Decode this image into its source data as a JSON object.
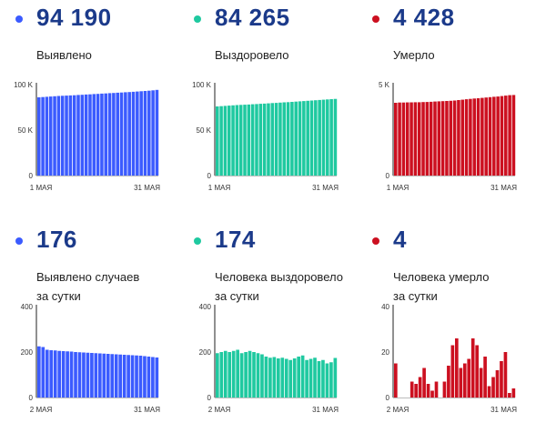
{
  "colors": {
    "blue": "#3b5bff",
    "green": "#1fc9a0",
    "red": "#cc1020",
    "headline": "#1b3a8a"
  },
  "panels": [
    {
      "big": "94 190",
      "label1": "Выявлено",
      "label2": ""
    },
    {
      "big": "84 265",
      "label1": "Выздоровело",
      "label2": ""
    },
    {
      "big": "4 428",
      "label1": "Умерло",
      "label2": ""
    },
    {
      "big": "176",
      "label1": "Выявлено случаев",
      "label2": "за сутки"
    },
    {
      "big": "174",
      "label1": "Человека выздоровело",
      "label2": "за сутки"
    },
    {
      "big": "4",
      "label1": "Человека умерло",
      "label2": "за сутки"
    }
  ],
  "chart_data": [
    {
      "type": "bar",
      "title": "Выявлено",
      "color": "blue",
      "ymax": 100000,
      "yticks": [
        {
          "v": 100000,
          "t": "100 K"
        },
        {
          "v": 50000,
          "t": "50 K"
        },
        {
          "v": 0,
          "t": "0"
        }
      ],
      "xfirst": "1 МАЯ",
      "xlast": "31 МАЯ",
      "values": [
        86000,
        86300,
        86600,
        86900,
        87200,
        87500,
        87700,
        87900,
        88100,
        88300,
        88600,
        88800,
        89100,
        89300,
        89600,
        89800,
        90100,
        90300,
        90600,
        90800,
        91100,
        91300,
        91600,
        91800,
        92100,
        92400,
        92700,
        93000,
        93300,
        93700,
        94190
      ]
    },
    {
      "type": "bar",
      "title": "Выздоровело",
      "color": "green",
      "ymax": 100000,
      "yticks": [
        {
          "v": 100000,
          "t": "100 K"
        },
        {
          "v": 50000,
          "t": "50 K"
        },
        {
          "v": 0,
          "t": "0"
        }
      ],
      "xfirst": "1 МАЯ",
      "xlast": "31 МАЯ",
      "values": [
        76000,
        76300,
        76600,
        76900,
        77200,
        77500,
        77700,
        77900,
        78100,
        78400,
        78600,
        78900,
        79100,
        79400,
        79700,
        79900,
        80200,
        80500,
        80700,
        81000,
        81300,
        81600,
        81900,
        82200,
        82500,
        82800,
        83100,
        83400,
        83700,
        84000,
        84265
      ]
    },
    {
      "type": "bar",
      "title": "Умерло",
      "color": "red",
      "ymax": 5000,
      "yticks": [
        {
          "v": 5000,
          "t": "5 K"
        },
        {
          "v": 0,
          "t": "0"
        }
      ],
      "xfirst": "1 МАЯ",
      "xlast": "31 МАЯ",
      "values": [
        4000,
        4015,
        4015,
        4022,
        4024,
        4030,
        4030,
        4040,
        4045,
        4055,
        4070,
        4080,
        4090,
        4100,
        4110,
        4125,
        4150,
        4170,
        4195,
        4215,
        4235,
        4250,
        4270,
        4290,
        4310,
        4330,
        4345,
        4370,
        4395,
        4420,
        4428
      ]
    },
    {
      "type": "bar",
      "title": "Выявлено случаев за сутки",
      "color": "blue",
      "ymax": 400,
      "yticks": [
        {
          "v": 400,
          "t": "400"
        },
        {
          "v": 200,
          "t": "200"
        },
        {
          "v": 0,
          "t": "0"
        }
      ],
      "xfirst": "2 МАЯ",
      "xlast": "31 МАЯ",
      "values": [
        225,
        222,
        210,
        208,
        207,
        205,
        204,
        203,
        202,
        200,
        199,
        198,
        197,
        196,
        195,
        194,
        193,
        192,
        191,
        190,
        189,
        188,
        187,
        186,
        185,
        184,
        182,
        180,
        178,
        176
      ]
    },
    {
      "type": "bar",
      "title": "Человека выздоровело за сутки",
      "color": "green",
      "ymax": 400,
      "yticks": [
        {
          "v": 400,
          "t": "400"
        },
        {
          "v": 200,
          "t": "200"
        },
        {
          "v": 0,
          "t": "0"
        }
      ],
      "xfirst": "2 МАЯ",
      "xlast": "31 МАЯ",
      "values": [
        195,
        200,
        205,
        200,
        205,
        210,
        195,
        200,
        205,
        200,
        195,
        190,
        180,
        175,
        178,
        172,
        175,
        170,
        165,
        172,
        180,
        185,
        165,
        170,
        175,
        160,
        165,
        150,
        155,
        174
      ]
    },
    {
      "type": "bar",
      "title": "Человека умерло за сутки",
      "color": "red",
      "ymax": 40,
      "yticks": [
        {
          "v": 40,
          "t": "40"
        },
        {
          "v": 20,
          "t": "20"
        },
        {
          "v": 0,
          "t": "0"
        }
      ],
      "xfirst": "2 МАЯ",
      "xlast": "31 МАЯ",
      "values": [
        15,
        0,
        0,
        0,
        7,
        6,
        9,
        13,
        6,
        3,
        7,
        0,
        7,
        14,
        23,
        26,
        13,
        15,
        17,
        26,
        23,
        13,
        18,
        5,
        9,
        12,
        16,
        20,
        2,
        4
      ]
    }
  ]
}
